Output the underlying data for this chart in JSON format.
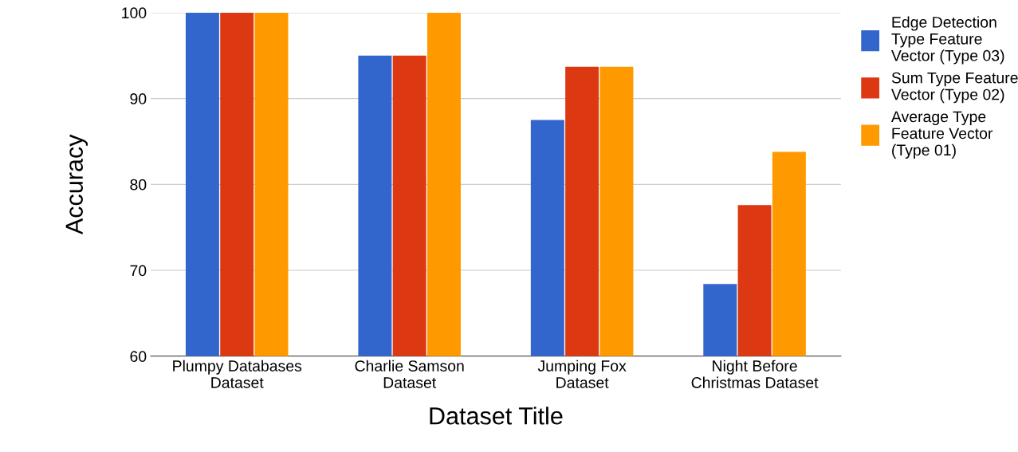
{
  "chart_data": {
    "type": "bar",
    "xlabel": "Dataset Title",
    "ylabel": "Accuracy",
    "categories": [
      "Plumpy Databases\nDataset",
      "Charlie Samson\nDataset",
      "Jumping Fox\nDataset",
      "Night Before\nChristmas Dataset"
    ],
    "series": [
      {
        "name": "Edge Detection Type Feature Vector (Type 03)",
        "color": "#3366cc",
        "values": [
          100,
          95,
          87.5,
          68.4
        ]
      },
      {
        "name": "Sum Type Feature Vector (Type 02)",
        "color": "#dc3912",
        "values": [
          100,
          95,
          93.7,
          77.6
        ]
      },
      {
        "name": "Average Type Feature Vector (Type 01)",
        "color": "#ff9900",
        "values": [
          100,
          100,
          93.7,
          83.8
        ]
      }
    ],
    "ylim": [
      60,
      100
    ],
    "yticks": [
      60,
      70,
      80,
      90,
      100
    ],
    "grid": "y",
    "legend": "right"
  }
}
